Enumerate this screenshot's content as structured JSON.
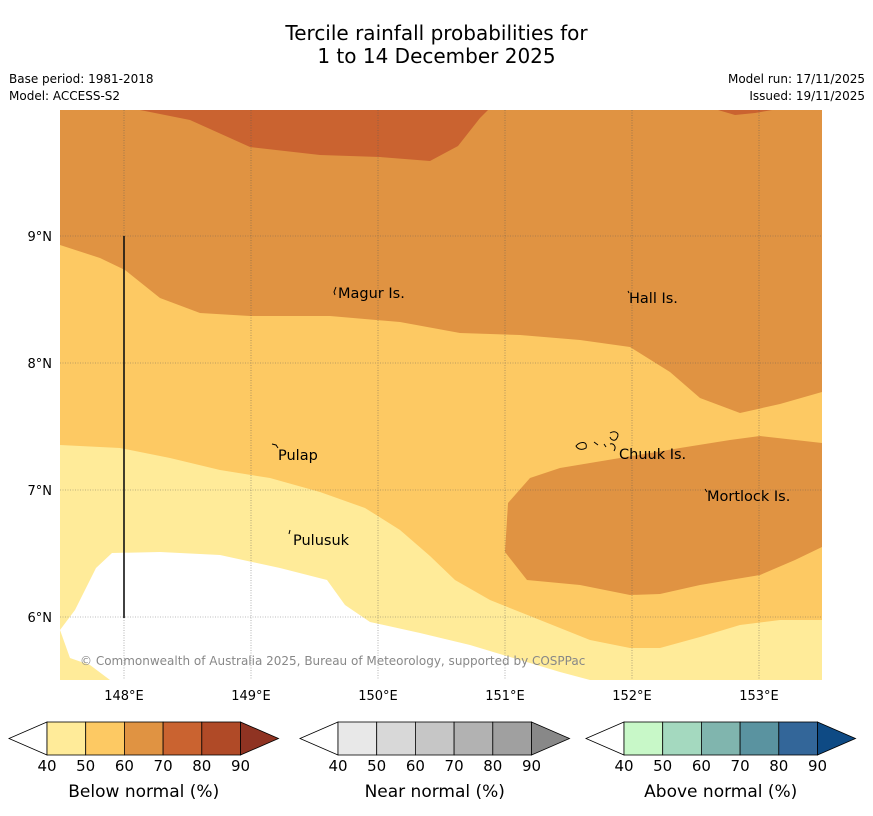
{
  "title": {
    "line1": "Tercile rainfall probabilities for",
    "line2": "1 to 14 December 2025"
  },
  "meta": {
    "base_period": "Base period: 1981-2018",
    "model": "Model: ACCESS-S2",
    "model_run": "Model run: 17/11/2025",
    "issued": "Issued: 19/11/2025"
  },
  "map": {
    "lat_labels": [
      "9°N",
      "8°N",
      "7°N",
      "6°N"
    ],
    "lon_labels": [
      "148°E",
      "149°E",
      "150°E",
      "151°E",
      "152°E",
      "153°E"
    ],
    "places": [
      "Magur Is.",
      "Hall Is.",
      "Pulap",
      "Chuuk Is.",
      "Mortlock Is.",
      "Pulusuk"
    ],
    "copyright": "© Commonwealth of Australia 2025, Bureau of Meteorology, supported by COSPPac",
    "colors": {
      "below_40_50": "#ffeb99",
      "below_50_60": "#fdc963",
      "below_60_70": "#e09342",
      "below_70_80": "#ca6330",
      "white": "#ffffff"
    }
  },
  "legends": [
    {
      "label": "Below normal (%)",
      "ticks": [
        "40",
        "50",
        "60",
        "70",
        "80",
        "90"
      ],
      "colors": [
        "#ffeb99",
        "#fdc963",
        "#e09342",
        "#ca6330",
        "#b04a27",
        "#8f3322"
      ]
    },
    {
      "label": "Near normal (%)",
      "ticks": [
        "40",
        "50",
        "60",
        "70",
        "80",
        "90"
      ],
      "colors": [
        "#e8e8e8",
        "#d8d8d8",
        "#c6c6c6",
        "#b2b2b2",
        "#a0a0a0",
        "#888888"
      ]
    },
    {
      "label": "Above normal (%)",
      "ticks": [
        "40",
        "50",
        "60",
        "70",
        "80",
        "90"
      ],
      "colors": [
        "#c8f8c8",
        "#a4d9bf",
        "#80b5ae",
        "#5a93a0",
        "#336699",
        "#0e4a84"
      ]
    }
  ]
}
